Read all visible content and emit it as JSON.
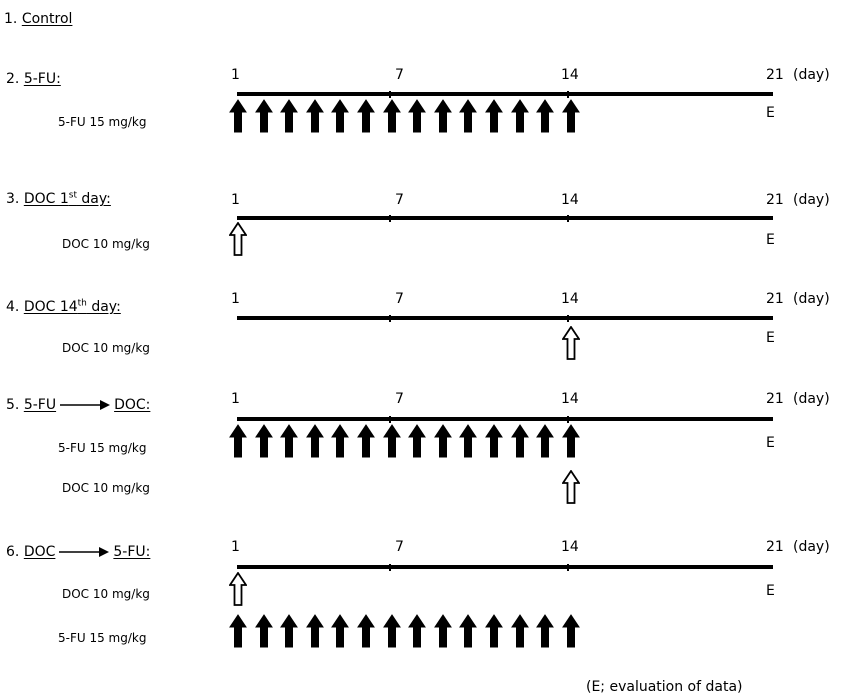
{
  "section1": {
    "title": "1. Control",
    "num": "1.",
    "label": "Control"
  },
  "groups": [
    {
      "id": "g2",
      "num": "2.",
      "label": "5-FU:",
      "ticks": [
        "1",
        "7",
        "14",
        "21"
      ],
      "unit": "(day)",
      "eval": "E",
      "rows": [
        {
          "drug": "5-FU 15 mg/kg",
          "type": "filled",
          "days": [
            1,
            2,
            3,
            4,
            5,
            6,
            7,
            8,
            9,
            10,
            11,
            12,
            13,
            14
          ]
        }
      ]
    },
    {
      "id": "g3",
      "num": "3.",
      "label_main": "DOC 1",
      "label_sup": "st",
      "label_tail": " day:",
      "ticks": [
        "1",
        "7",
        "14",
        "21"
      ],
      "unit": "(day)",
      "eval": "E",
      "rows": [
        {
          "drug": "DOC 10 mg/kg",
          "type": "open",
          "days": [
            1
          ]
        }
      ]
    },
    {
      "id": "g4",
      "num": "4.",
      "label_main": "DOC 14",
      "label_sup": "th",
      "label_tail": " day:",
      "ticks": [
        "1",
        "7",
        "14",
        "21"
      ],
      "unit": "(day)",
      "eval": "E",
      "rows": [
        {
          "drug": "DOC 10 mg/kg",
          "type": "open",
          "days": [
            14
          ]
        }
      ]
    },
    {
      "id": "g5",
      "num": "5.",
      "label_a": "5-FU",
      "label_b": "DOC:",
      "ticks": [
        "1",
        "7",
        "14",
        "21"
      ],
      "unit": "(day)",
      "eval": "E",
      "rows": [
        {
          "drug": "5-FU 15 mg/kg",
          "type": "filled",
          "days": [
            1,
            2,
            3,
            4,
            5,
            6,
            7,
            8,
            9,
            10,
            11,
            12,
            13,
            14
          ]
        },
        {
          "drug": "DOC 10 mg/kg",
          "type": "open",
          "days": [
            14
          ]
        }
      ]
    },
    {
      "id": "g6",
      "num": "6.",
      "label_a": "DOC",
      "label_b": "5-FU:",
      "ticks": [
        "1",
        "7",
        "14",
        "21"
      ],
      "unit": "(day)",
      "eval": "E",
      "rows": [
        {
          "drug": "DOC 10 mg/kg",
          "type": "open",
          "days": [
            1
          ]
        },
        {
          "drug": "5-FU 15 mg/kg",
          "type": "filled",
          "days": [
            1,
            2,
            3,
            4,
            5,
            6,
            7,
            8,
            9,
            10,
            11,
            12,
            13,
            14
          ]
        }
      ]
    }
  ],
  "footnote": "(E; evaluation of data)"
}
